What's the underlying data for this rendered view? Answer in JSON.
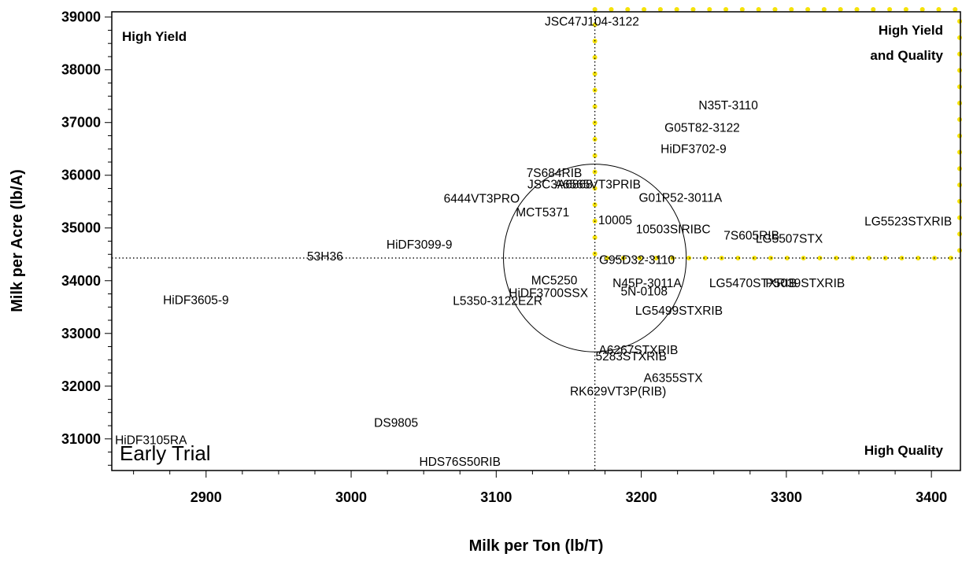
{
  "chart_data": {
    "type": "scatter",
    "xlabel": "Milk per Ton (lb/T)",
    "ylabel": "Milk per Acre (lb/A)",
    "xlim": [
      2835,
      3420
    ],
    "ylim": [
      30400,
      39100
    ],
    "xticks": [
      2900,
      3000,
      3100,
      3200,
      3300,
      3400
    ],
    "yticks": [
      31000,
      32000,
      33000,
      34000,
      35000,
      36000,
      37000,
      38000,
      39000
    ],
    "xtick_labels": [
      "2900",
      "3000",
      "3100",
      "3200",
      "3300",
      "3400"
    ],
    "ytick_labels": [
      "31000",
      "32000",
      "33000",
      "34000",
      "35000",
      "36000",
      "37000",
      "38000",
      "39000"
    ],
    "reference_lines": {
      "mean_x": 3168,
      "mean_y": 34430
    },
    "ellipse": {
      "center_x": 3168,
      "center_y": 34430,
      "radius_x": 63,
      "radius_y": 1780
    },
    "quadrant_labels": {
      "top_left": "High Yield",
      "top_right_line1": "High Yield",
      "top_right_line2": "and Quality",
      "bottom_right": "High Quality",
      "bottom_left": "Early Trial"
    },
    "highlight_color": "#f5e20a",
    "points": [
      {
        "label": "JSC47J104-3122",
        "x": 3166,
        "y": 38920
      },
      {
        "label": "N35T-3110",
        "x": 3260,
        "y": 37330
      },
      {
        "label": "G05T82-3122",
        "x": 3242,
        "y": 36910
      },
      {
        "label": "HiDF3702-9",
        "x": 3236,
        "y": 36500
      },
      {
        "label": "7S684RIB",
        "x": 3140,
        "y": 36050
      },
      {
        "label": "JSC3A6868",
        "x": 3144,
        "y": 35830
      },
      {
        "label": "A6565VT3PRIB",
        "x": 3170,
        "y": 35830
      },
      {
        "label": "6444VT3PRO",
        "x": 3090,
        "y": 35560
      },
      {
        "label": "G01P52-3011A",
        "x": 3227,
        "y": 35580
      },
      {
        "label": "MCT5371",
        "x": 3132,
        "y": 35300
      },
      {
        "label": "10005",
        "x": 3182,
        "y": 35150
      },
      {
        "label": "10503SIRIBC",
        "x": 3222,
        "y": 34980
      },
      {
        "label": "7S605RIB",
        "x": 3276,
        "y": 34860
      },
      {
        "label": "LG5507STX",
        "x": 3302,
        "y": 34800
      },
      {
        "label": "LG5523STXRIB",
        "x": 3384,
        "y": 35130
      },
      {
        "label": "HiDF3099-9",
        "x": 3047,
        "y": 34690
      },
      {
        "label": "53H36",
        "x": 2982,
        "y": 34470
      },
      {
        "label": "G95D32-3110",
        "x": 3197,
        "y": 34400
      },
      {
        "label": "MC5250",
        "x": 3140,
        "y": 34010
      },
      {
        "label": "N45P-3011A",
        "x": 3204,
        "y": 33960
      },
      {
        "label": "LG5470STXRIB",
        "x": 3277,
        "y": 33960
      },
      {
        "label": "P5039STXRIB",
        "x": 3313,
        "y": 33960
      },
      {
        "label": "HiDF3700SSX",
        "x": 3136,
        "y": 33770
      },
      {
        "label": "5N-0108",
        "x": 3202,
        "y": 33800
      },
      {
        "label": "HiDF3605-9",
        "x": 2893,
        "y": 33640
      },
      {
        "label": "L5350-3122EZR",
        "x": 3101,
        "y": 33620
      },
      {
        "label": "LG5499STXRIB",
        "x": 3226,
        "y": 33440
      },
      {
        "label": "A6267STXRIB",
        "x": 3198,
        "y": 32690
      },
      {
        "label": "5283STXRIB",
        "x": 3193,
        "y": 32570
      },
      {
        "label": "A6355STX",
        "x": 3222,
        "y": 32160
      },
      {
        "label": "RK629VT3P(RIB)",
        "x": 3184,
        "y": 31910
      },
      {
        "label": "DS9805",
        "x": 3031,
        "y": 31310
      },
      {
        "label": "HiDF3105RA",
        "x": 2862,
        "y": 30980
      },
      {
        "label": "HDS76S50RIB",
        "x": 3075,
        "y": 30570
      }
    ]
  }
}
